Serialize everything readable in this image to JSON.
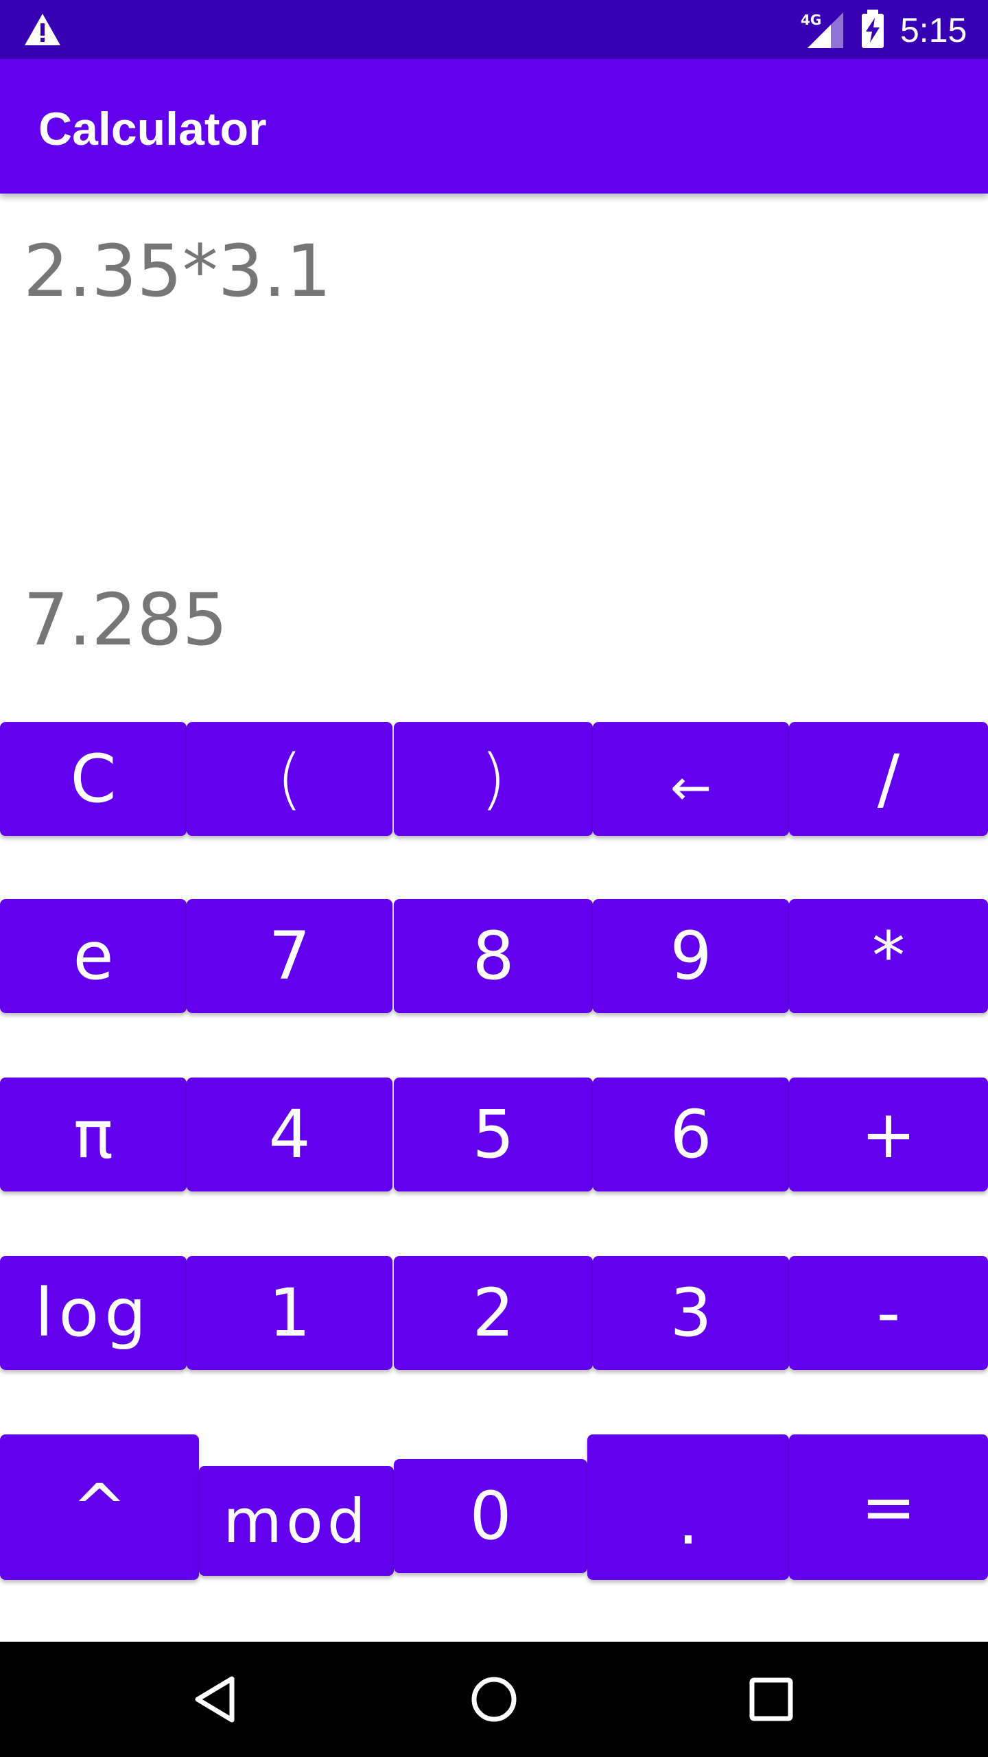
{
  "status_bar": {
    "network": "4G",
    "time": "5:15",
    "icons": [
      "warning-icon",
      "signal-icon",
      "battery-charging-icon"
    ]
  },
  "app_bar": {
    "title": "Calculator"
  },
  "display": {
    "expression": "2.35*3.1",
    "result": "7.285"
  },
  "keypad": {
    "row1": [
      "C",
      "(",
      ")",
      "←",
      "/"
    ],
    "row2": [
      "e",
      "7",
      "8",
      "9",
      "*"
    ],
    "row3": [
      "π",
      "4",
      "5",
      "6",
      "+"
    ],
    "row4": [
      "log",
      "1",
      "2",
      "3",
      "-"
    ],
    "row5": [
      "^",
      "mod",
      "0",
      ".",
      "="
    ]
  },
  "nav_bar": {
    "icons": [
      "back-icon",
      "home-icon",
      "recents-icon"
    ]
  },
  "colors": {
    "status_bar": "#3700b3",
    "primary": "#6200ee",
    "display_text": "#767676"
  }
}
